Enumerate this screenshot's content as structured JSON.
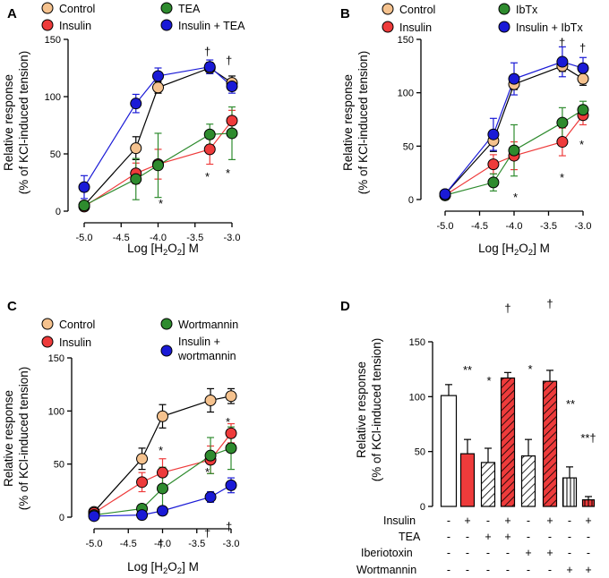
{
  "colors": {
    "control": "#f5c28e",
    "insulin": "#ee3b3b",
    "green": "#2e8b2e",
    "blue": "#1a1ad6",
    "axis": "#000000"
  },
  "panels": [
    {
      "letter": "A",
      "legend": [
        "Control",
        "Insulin",
        "TEA",
        "Insulin + TEA"
      ],
      "stars": [
        "*",
        "*",
        "*"
      ],
      "daggers": [
        "†",
        "†",
        "†"
      ]
    },
    {
      "letter": "B",
      "legend": [
        "Control",
        "Insulin",
        "IbTx",
        "Insulin + IbTx"
      ],
      "stars": [
        "*",
        "*",
        "*"
      ],
      "daggers": [
        "†",
        "†",
        "†"
      ]
    },
    {
      "letter": "C",
      "legend": [
        "Control",
        "Insulin",
        "Wortmannin",
        "Insulin +",
        "wortmannin"
      ],
      "stars": [
        "*",
        "*",
        "*"
      ],
      "daggers": [
        "†",
        "†",
        "†"
      ]
    },
    {
      "letter": "D",
      "bar_symbols": [
        "**",
        "*",
        "†",
        "*",
        "†",
        "**",
        "**†"
      ],
      "row_labels": [
        "Insulin",
        "TEA",
        "Iberiotoxin",
        "Wortmannin"
      ],
      "signs": [
        [
          "-",
          "+",
          "-",
          "+",
          "-",
          "+",
          "-",
          "+"
        ],
        [
          "-",
          "-",
          "+",
          "+",
          "-",
          "-",
          "-",
          "-"
        ],
        [
          "-",
          "-",
          "-",
          "-",
          "+",
          "+",
          "-",
          "-"
        ],
        [
          "-",
          "-",
          "-",
          "-",
          "-",
          "-",
          "+",
          "+"
        ]
      ]
    }
  ],
  "chart_data": [
    {
      "type": "line",
      "title": "A",
      "xlabel": "Log [H2O2] M",
      "ylabel_line1": "Relative response",
      "ylabel_line2": "(% of KCl-induced tension)",
      "xlim": [
        -5.0,
        -3.0
      ],
      "ylim": [
        0,
        150
      ],
      "xticks": [
        -5.0,
        -4.5,
        -4.0,
        -3.5,
        -3.0
      ],
      "xtick_labels": [
        "-5.0",
        "-4.5",
        "-4.0",
        "-3.5",
        "-3.0"
      ],
      "yticks": [
        0,
        50,
        100,
        150
      ],
      "ytick_labels": [
        "0",
        "50",
        "100",
        "150"
      ],
      "x": [
        -5.0,
        -4.3,
        -4.0,
        -3.3,
        -3.0
      ],
      "series": [
        {
          "name": "Control",
          "color": "#f5c28e",
          "values": [
            5,
            55,
            108,
            125,
            112
          ],
          "errors": [
            3,
            10,
            5,
            5,
            6
          ]
        },
        {
          "name": "Insulin",
          "color": "#ee3b3b",
          "values": [
            4,
            33,
            41,
            54,
            79
          ],
          "errors": [
            2,
            9,
            13,
            13,
            9
          ]
        },
        {
          "name": "TEA",
          "color": "#2e8b2e",
          "values": [
            5,
            28,
            40,
            67,
            68
          ],
          "errors": [
            3,
            18,
            28,
            9,
            23
          ]
        },
        {
          "name": "Insulin + TEA",
          "color": "#1a1ad6",
          "values": [
            21,
            94,
            118,
            126,
            109
          ],
          "errors": [
            10,
            8,
            7,
            6,
            6
          ]
        }
      ]
    },
    {
      "type": "line",
      "title": "B",
      "xlabel": "Log [H2O2] M",
      "ylabel_line1": "Relative response",
      "ylabel_line2": "(% of KCl-induced tension)",
      "xlim": [
        -5.0,
        -3.0
      ],
      "ylim": [
        0,
        150
      ],
      "xticks": [
        -5.0,
        -4.5,
        -4.0,
        -3.5,
        -3.0
      ],
      "xtick_labels": [
        "-5.0",
        "-4.5",
        "-4.0",
        "-3.5",
        "-3.0"
      ],
      "yticks": [
        0,
        50,
        100,
        150
      ],
      "ytick_labels": [
        "0",
        "50",
        "100",
        "150"
      ],
      "x": [
        -5.0,
        -4.3,
        -4.0,
        -3.3,
        -3.0
      ],
      "series": [
        {
          "name": "Control",
          "color": "#f5c28e",
          "values": [
            5,
            55,
            108,
            125,
            113
          ],
          "errors": [
            3,
            10,
            5,
            5,
            6
          ]
        },
        {
          "name": "Insulin",
          "color": "#ee3b3b",
          "values": [
            4,
            33,
            41,
            54,
            79
          ],
          "errors": [
            2,
            9,
            13,
            13,
            9
          ]
        },
        {
          "name": "IbTx",
          "color": "#2e8b2e",
          "values": [
            4,
            16,
            46,
            72,
            84
          ],
          "errors": [
            2,
            8,
            24,
            14,
            8
          ]
        },
        {
          "name": "Insulin + IbTx",
          "color": "#1a1ad6",
          "values": [
            5,
            61,
            113,
            129,
            123
          ],
          "errors": [
            3,
            15,
            15,
            14,
            10
          ]
        }
      ]
    },
    {
      "type": "line",
      "title": "C",
      "xlabel": "Log [H2O2] M",
      "ylabel_line1": "Relative response",
      "ylabel_line2": "(% of KCl-induced tension)",
      "xlim": [
        -5.0,
        -3.0
      ],
      "ylim": [
        0,
        150
      ],
      "xticks": [
        -5.0,
        -4.5,
        -4.0,
        -3.5,
        -3.0
      ],
      "xtick_labels": [
        "-5.0",
        "-4.5",
        "-4.0",
        "-3.5",
        "-3.0"
      ],
      "yticks": [
        0,
        50,
        100,
        150
      ],
      "ytick_labels": [
        "0",
        "50",
        "100",
        "150"
      ],
      "x": [
        -5.0,
        -4.3,
        -4.0,
        -3.3,
        -3.0
      ],
      "series": [
        {
          "name": "Control",
          "color": "#f5c28e",
          "values": [
            5,
            55,
            95,
            110,
            114
          ],
          "errors": [
            3,
            10,
            11,
            11,
            7
          ]
        },
        {
          "name": "Insulin",
          "color": "#ee3b3b",
          "values": [
            4,
            33,
            42,
            54,
            79
          ],
          "errors": [
            2,
            9,
            13,
            13,
            9
          ]
        },
        {
          "name": "Wortmannin",
          "color": "#2e8b2e",
          "values": [
            2,
            8,
            27,
            58,
            65
          ],
          "errors": [
            2,
            4,
            20,
            17,
            20
          ]
        },
        {
          "name": "Insulin + wortmannin",
          "color": "#1a1ad6",
          "values": [
            1,
            2,
            6,
            19,
            30
          ],
          "errors": [
            1,
            2,
            4,
            5,
            7
          ]
        }
      ]
    },
    {
      "type": "bar",
      "title": "D",
      "ylabel_line1": "Relative response",
      "ylabel_line2": "(% of KCl-induced tension)",
      "ylim": [
        0,
        150
      ],
      "yticks": [
        0,
        50,
        100,
        150
      ],
      "ytick_labels": [
        "0",
        "50",
        "100",
        "150"
      ],
      "bars": [
        {
          "value": 101,
          "error": 10,
          "fill": "white",
          "hatch": "none"
        },
        {
          "value": 48,
          "error": 13,
          "fill": "#ee3b3b",
          "hatch": "none"
        },
        {
          "value": 40,
          "error": 13,
          "fill": "white",
          "hatch": "diag"
        },
        {
          "value": 117,
          "error": 5,
          "fill": "#ee3b3b",
          "hatch": "diag"
        },
        {
          "value": 46,
          "error": 15,
          "fill": "white",
          "hatch": "diag"
        },
        {
          "value": 114,
          "error": 10,
          "fill": "#ee3b3b",
          "hatch": "diag"
        },
        {
          "value": 26,
          "error": 10,
          "fill": "white",
          "hatch": "vert"
        },
        {
          "value": 6,
          "error": 3,
          "fill": "#ee3b3b",
          "hatch": "vert"
        }
      ]
    }
  ]
}
